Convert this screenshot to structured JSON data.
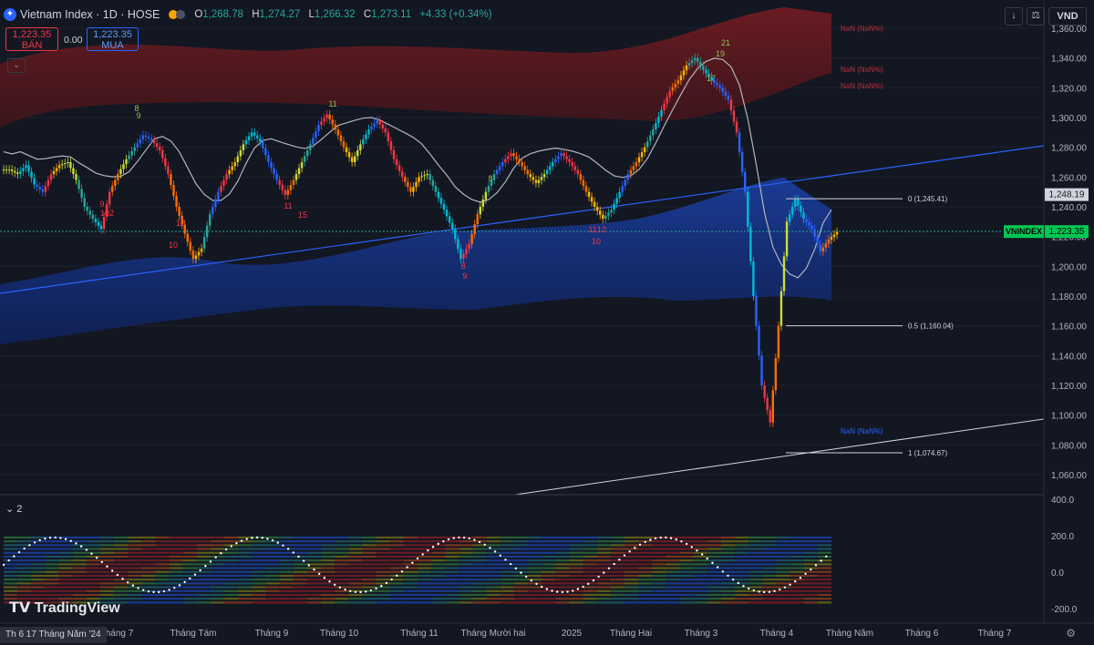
{
  "header": {
    "symbol": "Vietnam Index · 1D · HOSE",
    "open_label": "O",
    "open": "1,268.78",
    "high_label": "H",
    "high": "1,274.27",
    "low_label": "L",
    "low": "1,266.32",
    "close_label": "C",
    "close": "1,273.11",
    "change": "+4.33 (+0.34%)"
  },
  "trade": {
    "sell_price": "1,223.35",
    "sell_label": "BÁN",
    "spread": "0.00",
    "buy_price": "1,223.35",
    "buy_label": "MUA"
  },
  "toolbar": {
    "currency": "VND",
    "down_icon": "↓",
    "compare_icon": "⚖"
  },
  "indicator_panel": {
    "label": "⌄ 2"
  },
  "brand": {
    "logo_text": "TradingView"
  },
  "footer": {
    "current_date": "Th 6 17 Tháng Năm '24",
    "settings_icon": "⚙"
  },
  "colors": {
    "bg": "#131722",
    "up": "#26a69a",
    "down": "#f23645",
    "accent": "#2962ff"
  },
  "chart_data": {
    "type": "candlestick",
    "y_ticks": [
      "1,360.00",
      "1,340.00",
      "1,320.00",
      "1,300.00",
      "1,280.00",
      "1,260.00",
      "1,240.00",
      "1,220.00",
      "1,200.00",
      "1,180.00",
      "1,160.00",
      "1,140.00",
      "1,120.00",
      "1,100.00",
      "1,080.00",
      "1,060.00"
    ],
    "y_values": [
      1360,
      1340,
      1320,
      1300,
      1280,
      1260,
      1240,
      1220,
      1200,
      1180,
      1160,
      1140,
      1120,
      1100,
      1080,
      1060
    ],
    "x_labels": [
      "Tháng 7",
      "Tháng Tám",
      "Tháng 9",
      "Tháng 10",
      "Tháng 11",
      "Tháng Mười hai",
      "2025",
      "Tháng Hai",
      "Tháng 3",
      "Tháng 4",
      "Tháng Năm",
      "Tháng 6",
      "Tháng 7"
    ],
    "price_labels": [
      {
        "text": "1,248.19",
        "value": 1248.19
      },
      {
        "text": "VNINDEX",
        "value": 1223.35
      },
      {
        "text": "1,223.35",
        "value": 1223.35
      }
    ],
    "fib_levels": [
      {
        "label": "0 (1,245.41)",
        "value": 1245.41
      },
      {
        "label": "0.5 (1,160.04)",
        "value": 1160.04
      },
      {
        "label": "1 (1,074.67)",
        "value": 1074.67
      }
    ],
    "nan_labels": [
      "NaN (NaN%)",
      "NaN (NaN%)",
      "NaN (NaN%)",
      "NaN (NaN%)"
    ],
    "count_labels": [
      "8",
      "9",
      "11",
      "12",
      "10",
      "11",
      "15",
      "9",
      "8",
      "11",
      "12",
      "10",
      "9",
      "12",
      "10",
      "8",
      "19",
      "21",
      "17"
    ],
    "lower_y_ticks": [
      "400.0",
      "200.0",
      "0.0",
      "-200.0"
    ],
    "lower_y_values": [
      400,
      200,
      0,
      -200
    ],
    "close_path": [
      1265,
      1262,
      1268,
      1255,
      1250,
      1262,
      1268,
      1270,
      1258,
      1240,
      1232,
      1225,
      1250,
      1262,
      1272,
      1280,
      1288,
      1285,
      1278,
      1262,
      1240,
      1222,
      1205,
      1212,
      1235,
      1250,
      1262,
      1270,
      1282,
      1290,
      1284,
      1270,
      1258,
      1248,
      1258,
      1270,
      1282,
      1295,
      1302,
      1292,
      1280,
      1270,
      1282,
      1292,
      1298,
      1290,
      1272,
      1260,
      1250,
      1260,
      1262,
      1250,
      1238,
      1225,
      1205,
      1215,
      1235,
      1250,
      1262,
      1270,
      1276,
      1270,
      1262,
      1256,
      1262,
      1270,
      1276,
      1270,
      1262,
      1250,
      1240,
      1232,
      1238,
      1250,
      1262,
      1270,
      1280,
      1292,
      1305,
      1318,
      1325,
      1335,
      1340,
      1332,
      1325,
      1320,
      1312,
      1290,
      1250,
      1180,
      1120,
      1095,
      1160,
      1230,
      1245,
      1232,
      1225,
      1210,
      1218,
      1223
    ]
  }
}
